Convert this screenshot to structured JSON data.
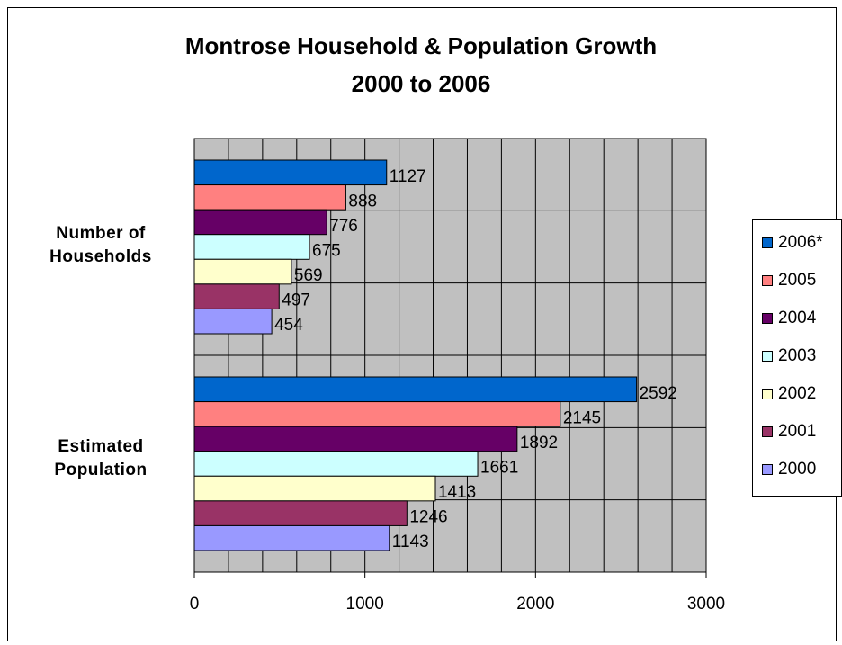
{
  "chart_data": {
    "type": "bar",
    "orientation": "horizontal",
    "title": "Montrose Household & Population Growth",
    "subtitle": "2000 to 2006",
    "categories": [
      "Number of Households",
      "Estimated Population"
    ],
    "category_lines": [
      [
        "Number of",
        "Households"
      ],
      [
        "Estimated",
        "Population"
      ]
    ],
    "series": [
      {
        "name": "2006*",
        "color": "#0066CC",
        "values": [
          1127,
          2592
        ]
      },
      {
        "name": "2005",
        "color": "#FF8080",
        "values": [
          888,
          2145
        ]
      },
      {
        "name": "2004",
        "color": "#660066",
        "values": [
          776,
          1892
        ]
      },
      {
        "name": "2003",
        "color": "#CCFFFF",
        "values": [
          675,
          1661
        ]
      },
      {
        "name": "2002",
        "color": "#FFFFCC",
        "values": [
          569,
          1413
        ]
      },
      {
        "name": "2001",
        "color": "#993366",
        "values": [
          497,
          1246
        ]
      },
      {
        "name": "2000",
        "color": "#9999FF",
        "values": [
          454,
          1143
        ]
      }
    ],
    "xlim": [
      0,
      3000
    ],
    "x_ticks": [
      "0",
      "1000",
      "2000",
      "3000"
    ],
    "plot_background": "#C0C0C0",
    "grid": true,
    "legend_position": "right"
  }
}
